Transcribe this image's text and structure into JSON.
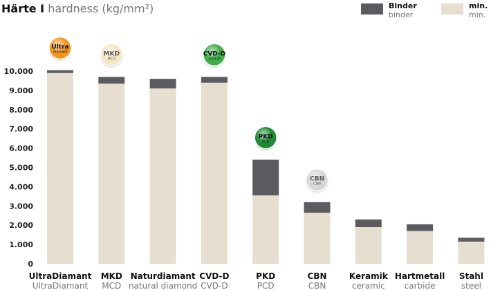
{
  "title": {
    "de": "Härte I",
    "en": "hardness (kg/mm²)"
  },
  "legend": [
    {
      "de": "Binder",
      "en": "binder",
      "color": "#5b5b60"
    },
    {
      "de": "min.",
      "en": "min.",
      "color": "#e6dfd0"
    }
  ],
  "colors": {
    "min": "#e6dfd0",
    "binder": "#5b5b60"
  },
  "chart_data": {
    "type": "bar",
    "stacked": true,
    "title": "Härte I hardness (kg/mm²)",
    "xlabel": "",
    "ylabel": "",
    "ylim": [
      0,
      10000
    ],
    "yticks": [
      "0",
      "1.000",
      "2.000",
      "3.000",
      "4.000",
      "5.000",
      "6.000",
      "7.000",
      "8.000",
      "9.000",
      "10.000"
    ],
    "legend_position": "top-right",
    "categories": [
      {
        "de": "UltraDiamant",
        "en": "UltraDiamant"
      },
      {
        "de": "MKD",
        "en": "MCD"
      },
      {
        "de": "Naturdiamant",
        "en": "natural diamond"
      },
      {
        "de": "CVD-D",
        "en": "CVD-D"
      },
      {
        "de": "PKD",
        "en": "PCD"
      },
      {
        "de": "CBN",
        "en": "CBN"
      },
      {
        "de": "Keramik",
        "en": "ceramic"
      },
      {
        "de": "Hartmetall",
        "en": "carbide"
      },
      {
        "de": "Stahl",
        "en": "steel"
      }
    ],
    "series": [
      {
        "name": "min.",
        "values": [
          9900,
          9350,
          9100,
          9400,
          3550,
          2650,
          1900,
          1700,
          1150
        ]
      },
      {
        "name": "Binder",
        "values": [
          150,
          350,
          500,
          300,
          1850,
          550,
          400,
          350,
          200
        ]
      }
    ],
    "badges": [
      {
        "category": 0,
        "line1": "Ultra",
        "line2": "Diamant",
        "color": "#f0961e",
        "text_color": "#111111"
      },
      {
        "category": 1,
        "line1": "MKD",
        "line2": "MCD",
        "color": "#f6e7c4",
        "text_color": "#5a5a5a"
      },
      {
        "category": 3,
        "line1": "CVD-D",
        "line2": "CVD-D",
        "color": "#3fae49",
        "text_color": "#111111"
      },
      {
        "category": 4,
        "line1": "PKD",
        "line2": "PCD",
        "color": "#1e8c33",
        "text_color": "#111111"
      },
      {
        "category": 5,
        "line1": "CBN",
        "line2": "CBN",
        "color": "#d7d7d7",
        "text_color": "#555555"
      }
    ]
  }
}
